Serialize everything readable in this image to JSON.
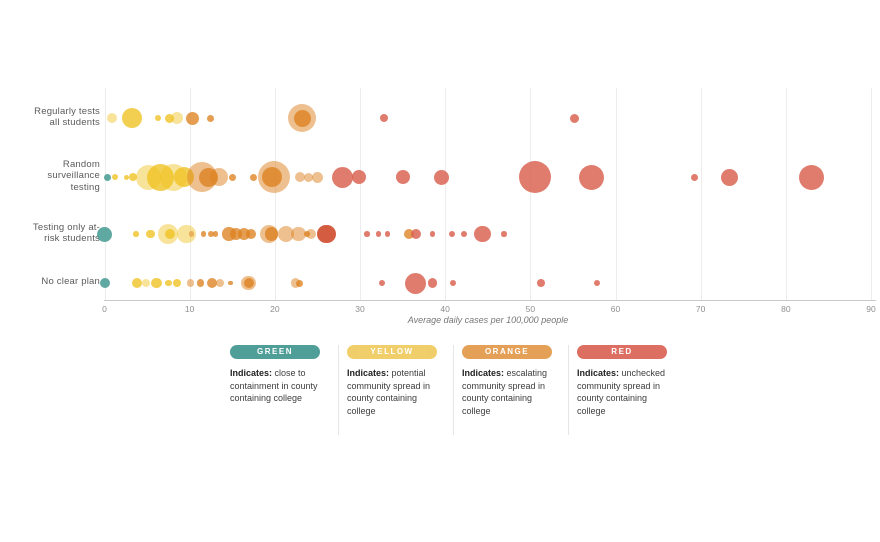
{
  "chart_data": {
    "type": "scatter",
    "subtype": "bubble-swarm",
    "xlabel": "Average daily cases per 100,000 people",
    "xlim": [
      0,
      90
    ],
    "x_ticks": [
      0,
      10,
      20,
      30,
      40,
      50,
      60,
      70,
      80,
      90
    ],
    "grid": "vertical-on",
    "palette": {
      "green": {
        "fill": "#4f9e98",
        "opacity": 0.9
      },
      "yellow": {
        "fill": "#f0c220",
        "opacity": 0.78
      },
      "yellowPale": {
        "fill": "#f0c220",
        "opacity": 0.45
      },
      "orange": {
        "fill": "#dd8120",
        "opacity": 0.78
      },
      "orangePale": {
        "fill": "#dd8120",
        "opacity": 0.5
      },
      "red": {
        "fill": "#d95f4d",
        "opacity": 0.82
      },
      "redDark": {
        "fill": "#cc3f1f",
        "opacity": 0.85
      }
    },
    "rows": [
      {
        "label_lines": [
          "Regularly tests",
          "all students"
        ],
        "y": 118,
        "bubbles": [
          {
            "x": 0.9,
            "r": 5,
            "c": "yellowPale"
          },
          {
            "x": 3.2,
            "r": 10,
            "c": "yellow"
          },
          {
            "x": 6.3,
            "r": 3,
            "c": "yellow"
          },
          {
            "x": 7.6,
            "r": 4.5,
            "c": "yellow"
          },
          {
            "x": 8.5,
            "r": 6,
            "c": "yellowPale"
          },
          {
            "x": 10.3,
            "r": 6.5,
            "c": "orange"
          },
          {
            "x": 12.4,
            "r": 3.5,
            "c": "orange"
          },
          {
            "x": 23.2,
            "r": 14,
            "c": "orangePale"
          },
          {
            "x": 23.3,
            "r": 8.5,
            "c": "orange"
          },
          {
            "x": 32.8,
            "r": 4,
            "c": "red"
          },
          {
            "x": 55.2,
            "r": 4.5,
            "c": "red"
          }
        ]
      },
      {
        "label_lines": [
          "Random",
          "surveillance",
          "testing"
        ],
        "y": 177,
        "bubbles": [
          {
            "x": 0.3,
            "r": 3.5,
            "c": "green"
          },
          {
            "x": 1.2,
            "r": 3,
            "c": "yellow"
          },
          {
            "x": 2.6,
            "r": 2.5,
            "c": "yellow"
          },
          {
            "x": 3.4,
            "r": 4,
            "c": "yellow"
          },
          {
            "x": 5.2,
            "r": 12.5,
            "c": "yellowPale"
          },
          {
            "x": 6.6,
            "r": 13.5,
            "c": "yellow"
          },
          {
            "x": 8.1,
            "r": 13.5,
            "c": "yellowPale"
          },
          {
            "x": 9.3,
            "r": 10,
            "c": "yellow"
          },
          {
            "x": 11.4,
            "r": 15,
            "c": "orangePale"
          },
          {
            "x": 12.2,
            "r": 9.5,
            "c": "orange"
          },
          {
            "x": 13.5,
            "r": 9,
            "c": "orangePale"
          },
          {
            "x": 15.0,
            "r": 3.5,
            "c": "orange"
          },
          {
            "x": 17.5,
            "r": 3.5,
            "c": "orange"
          },
          {
            "x": 19.9,
            "r": 16,
            "c": "orangePale"
          },
          {
            "x": 19.7,
            "r": 10,
            "c": "orange"
          },
          {
            "x": 23.0,
            "r": 5,
            "c": "orangePale"
          },
          {
            "x": 24.0,
            "r": 4.5,
            "c": "orangePale"
          },
          {
            "x": 25.0,
            "r": 5.5,
            "c": "orangePale"
          },
          {
            "x": 28.0,
            "r": 10.5,
            "c": "red"
          },
          {
            "x": 29.9,
            "r": 7,
            "c": "red"
          },
          {
            "x": 35.1,
            "r": 7,
            "c": "red"
          },
          {
            "x": 39.6,
            "r": 7.5,
            "c": "red"
          },
          {
            "x": 50.5,
            "r": 16,
            "c": "red"
          },
          {
            "x": 57.2,
            "r": 12.5,
            "c": "red"
          },
          {
            "x": 69.3,
            "r": 3.5,
            "c": "red"
          },
          {
            "x": 73.4,
            "r": 8.5,
            "c": "red"
          },
          {
            "x": 83.0,
            "r": 12.5,
            "c": "red"
          }
        ]
      },
      {
        "label_lines": [
          "Testing only at-",
          "risk students"
        ],
        "y": 234,
        "bubbles": [
          {
            "x": 0.0,
            "r": 7.5,
            "c": "green"
          },
          {
            "x": 3.7,
            "r": 2.7,
            "c": "yellow"
          },
          {
            "x": 5.4,
            "r": 4.3,
            "c": "yellow"
          },
          {
            "x": 7.5,
            "r": 10,
            "c": "yellowPale"
          },
          {
            "x": 7.7,
            "r": 5,
            "c": "yellow"
          },
          {
            "x": 9.6,
            "r": 9.3,
            "c": "yellowPale"
          },
          {
            "x": 10.2,
            "r": 2.7,
            "c": "orangePale"
          },
          {
            "x": 11.6,
            "r": 2.7,
            "c": "orange"
          },
          {
            "x": 12.5,
            "r": 3.3,
            "c": "orange"
          },
          {
            "x": 13.0,
            "r": 2.7,
            "c": "orange"
          },
          {
            "x": 14.6,
            "r": 6.7,
            "c": "orange"
          },
          {
            "x": 15.4,
            "r": 6,
            "c": "orange"
          },
          {
            "x": 16.4,
            "r": 6,
            "c": "orange"
          },
          {
            "x": 17.2,
            "r": 5,
            "c": "orange"
          },
          {
            "x": 19.3,
            "r": 9.3,
            "c": "orangePale"
          },
          {
            "x": 19.6,
            "r": 6.7,
            "c": "orange"
          },
          {
            "x": 21.3,
            "r": 8.3,
            "c": "orangePale"
          },
          {
            "x": 22.8,
            "r": 7.3,
            "c": "orangePale"
          },
          {
            "x": 23.8,
            "r": 3.3,
            "c": "orange"
          },
          {
            "x": 24.3,
            "r": 5,
            "c": "orangePale"
          },
          {
            "x": 26.1,
            "r": 9.3,
            "c": "redDark"
          },
          {
            "x": 30.8,
            "r": 2.7,
            "c": "red"
          },
          {
            "x": 32.2,
            "r": 2.7,
            "c": "red"
          },
          {
            "x": 33.2,
            "r": 2.7,
            "c": "red"
          },
          {
            "x": 35.8,
            "r": 5,
            "c": "orange"
          },
          {
            "x": 36.6,
            "r": 5,
            "c": "red"
          },
          {
            "x": 38.5,
            "r": 2.7,
            "c": "red"
          },
          {
            "x": 40.8,
            "r": 3.3,
            "c": "red"
          },
          {
            "x": 42.2,
            "r": 3.3,
            "c": "red"
          },
          {
            "x": 44.4,
            "r": 8.3,
            "c": "red"
          },
          {
            "x": 46.9,
            "r": 2.7,
            "c": "red"
          }
        ]
      },
      {
        "label_lines": [
          "No clear plan"
        ],
        "y": 283,
        "bubbles": [
          {
            "x": 0.1,
            "r": 5,
            "c": "green"
          },
          {
            "x": 3.8,
            "r": 5,
            "c": "yellow"
          },
          {
            "x": 4.9,
            "r": 4,
            "c": "yellowPale"
          },
          {
            "x": 6.1,
            "r": 5.3,
            "c": "yellow"
          },
          {
            "x": 7.5,
            "r": 3.3,
            "c": "yellow"
          },
          {
            "x": 8.5,
            "r": 4,
            "c": "yellow"
          },
          {
            "x": 10.1,
            "r": 3.7,
            "c": "orangePale"
          },
          {
            "x": 11.3,
            "r": 3.7,
            "c": "orange"
          },
          {
            "x": 12.6,
            "r": 5,
            "c": "orange"
          },
          {
            "x": 13.6,
            "r": 4,
            "c": "orangePale"
          },
          {
            "x": 14.8,
            "r": 2.3,
            "c": "orange"
          },
          {
            "x": 16.9,
            "r": 7.3,
            "c": "orangePale"
          },
          {
            "x": 17.0,
            "r": 5,
            "c": "orange"
          },
          {
            "x": 22.4,
            "r": 4.7,
            "c": "orangePale"
          },
          {
            "x": 22.9,
            "r": 3.5,
            "c": "orange"
          },
          {
            "x": 32.6,
            "r": 3,
            "c": "red"
          },
          {
            "x": 36.5,
            "r": 10.5,
            "c": "red"
          },
          {
            "x": 38.5,
            "r": 4.7,
            "c": "red"
          },
          {
            "x": 40.9,
            "r": 3.3,
            "c": "red"
          },
          {
            "x": 51.3,
            "r": 4,
            "c": "red"
          },
          {
            "x": 57.8,
            "r": 3,
            "c": "red"
          }
        ]
      }
    ]
  },
  "legend": {
    "items": [
      {
        "name": "GREEN",
        "color": "#4f9e98",
        "bold": "Indicates:",
        "text": " close to containment in county containing college"
      },
      {
        "name": "YELLOW",
        "color": "#f0cf6a",
        "bold": "Indicates:",
        "text": " potential community spread in county containing college"
      },
      {
        "name": "ORANGE",
        "color": "#e5a057",
        "bold": "Indicates:",
        "text": " escalating community spread in county containing college"
      },
      {
        "name": "RED",
        "color": "#dd6e62",
        "bold": "Indicates:",
        "text": " unchecked community spread in county containing college"
      }
    ]
  }
}
